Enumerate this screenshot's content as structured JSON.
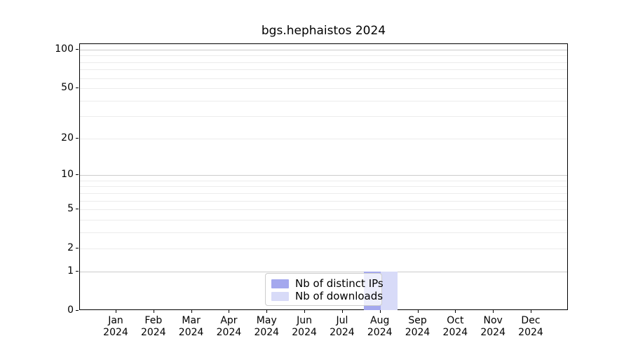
{
  "figure": {
    "background": "#ffffff"
  },
  "chart_data": {
    "type": "bar",
    "title": "bgs.hephaistos 2024",
    "xlabel": "",
    "ylabel": "",
    "categories": [
      "Jan",
      "Feb",
      "Mar",
      "Apr",
      "May",
      "Jun",
      "Jul",
      "Aug",
      "Sep",
      "Oct",
      "Nov",
      "Dec"
    ],
    "category_year": "2024",
    "series": [
      {
        "name": "Nb of distinct IPs",
        "color": "#a4a8ee",
        "values": [
          0,
          0,
          0,
          0,
          0,
          0,
          0,
          1,
          0,
          0,
          0,
          0
        ]
      },
      {
        "name": "Nb of downloads",
        "color": "#d8dbf8",
        "values": [
          0,
          0,
          0,
          0,
          0,
          0,
          0,
          1,
          0,
          0,
          0,
          0
        ]
      }
    ],
    "y_scale": "log1p",
    "y_ticks": [
      0,
      1,
      2,
      5,
      10,
      20,
      50,
      100
    ],
    "y_major_gridlines": [
      1,
      10,
      100
    ],
    "y_minor_gridlines": [
      2,
      3,
      4,
      5,
      6,
      7,
      8,
      9,
      20,
      30,
      40,
      50,
      60,
      70,
      80,
      90
    ],
    "ylim": [
      0,
      100
    ],
    "grid": true,
    "legend_position": "lower center",
    "colors": {
      "grid_major": "#cccccc",
      "grid_minor": "#ececec",
      "spine": "#000000",
      "legend_border": "#cccccc",
      "legend_background": "rgba(255,255,255,0.8)"
    }
  }
}
